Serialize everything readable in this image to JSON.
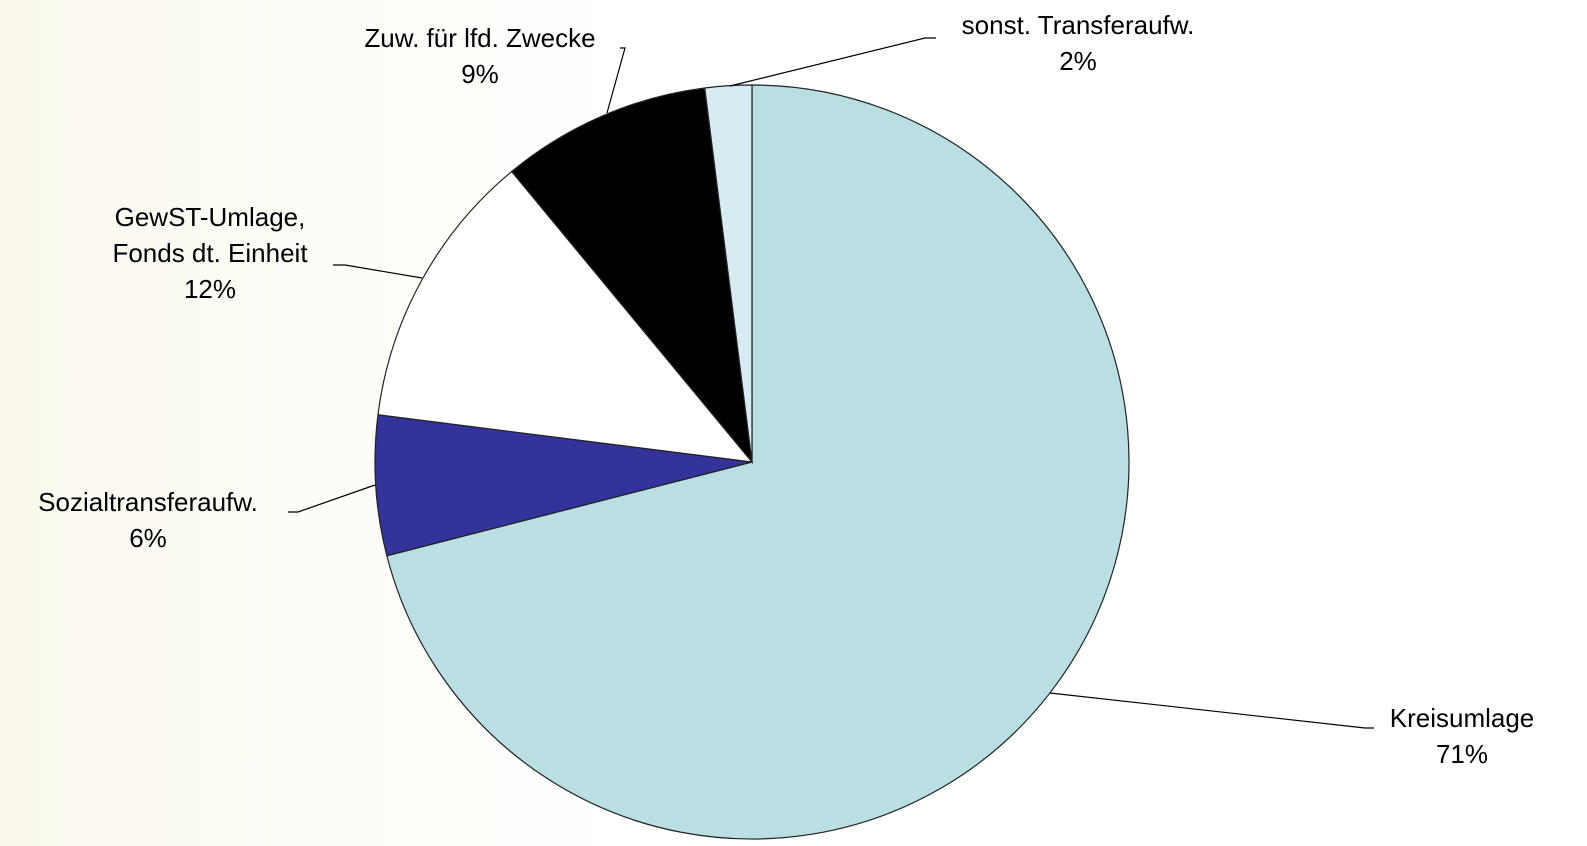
{
  "chart_data": {
    "type": "pie",
    "categories": [
      "Kreisumlage",
      "Sozialtransferaufw.",
      "GewST-Umlage,\nFonds dt. Einheit",
      "Zuw. für lfd. Zwecke",
      "sonst. Transferaufw."
    ],
    "values": [
      71,
      6,
      12,
      9,
      2
    ],
    "value_labels": [
      "71%",
      "6%",
      "12%",
      "9%",
      "2%"
    ],
    "colors": [
      "#b9dfe3",
      "#333399",
      "#ffffff",
      "#000000",
      "#d6ecf0"
    ],
    "start_angle": 0,
    "direction": "clockwise"
  }
}
